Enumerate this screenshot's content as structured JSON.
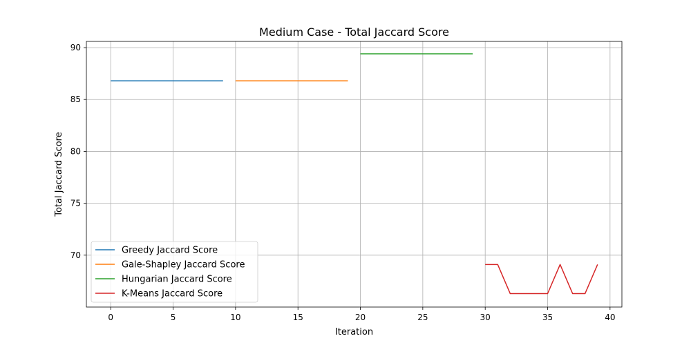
{
  "chart_data": {
    "type": "line",
    "title": "Medium Case - Total Jaccard Score",
    "xlabel": "Iteration",
    "ylabel": "Total Jaccard Score",
    "xlim": [
      -1.95,
      40.95
    ],
    "ylim": [
      65.0,
      90.6
    ],
    "xticks": [
      0,
      5,
      10,
      15,
      20,
      25,
      30,
      35,
      40
    ],
    "yticks": [
      70,
      75,
      80,
      85,
      90
    ],
    "grid": true,
    "legend_position": "lower-left",
    "series": [
      {
        "name": "Greedy Jaccard Score",
        "color": "#1f77b4",
        "x": [
          0,
          1,
          2,
          3,
          4,
          5,
          6,
          7,
          8,
          9
        ],
        "y": [
          86.8,
          86.8,
          86.8,
          86.8,
          86.8,
          86.8,
          86.8,
          86.8,
          86.8,
          86.8
        ]
      },
      {
        "name": "Gale-Shapley Jaccard Score",
        "color": "#ff7f0e",
        "x": [
          10,
          11,
          12,
          13,
          14,
          15,
          16,
          17,
          18,
          19
        ],
        "y": [
          86.8,
          86.8,
          86.8,
          86.8,
          86.8,
          86.8,
          86.8,
          86.8,
          86.8,
          86.8
        ]
      },
      {
        "name": "Hungarian Jaccard Score",
        "color": "#2ca02c",
        "x": [
          20,
          21,
          22,
          23,
          24,
          25,
          26,
          27,
          28,
          29
        ],
        "y": [
          89.4,
          89.4,
          89.4,
          89.4,
          89.4,
          89.4,
          89.4,
          89.4,
          89.4,
          89.4
        ]
      },
      {
        "name": "K-Means Jaccard Score",
        "color": "#d62728",
        "x": [
          30,
          31,
          32,
          33,
          34,
          35,
          36,
          37,
          38,
          39
        ],
        "y": [
          69.1,
          69.1,
          66.3,
          66.3,
          66.3,
          66.3,
          69.1,
          66.3,
          66.3,
          69.1
        ]
      }
    ]
  }
}
